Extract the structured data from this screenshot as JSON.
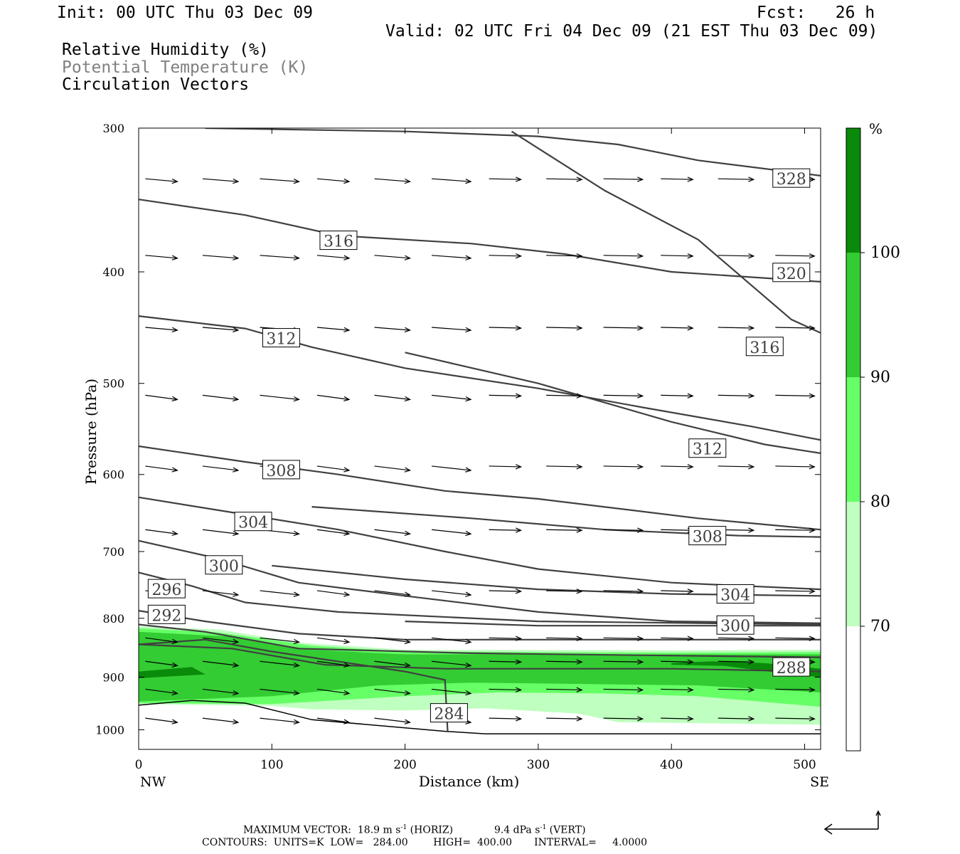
{
  "header": {
    "init": "Init: 00 UTC Thu 03 Dec 09",
    "fcst": "Fcst:   26 h",
    "valid": "Valid: 02 UTC Fri 04 Dec 09 (21 EST Thu 03 Dec 09)",
    "fields": [
      {
        "text": "Relative Humidity (%)",
        "color": "#000000"
      },
      {
        "text": "Potential Temperature (K)",
        "color": "#808080"
      },
      {
        "text": "Circulation Vectors",
        "color": "#000000"
      }
    ]
  },
  "colorbar": {
    "unit": "%",
    "levels": [
      {
        "label": "",
        "color": "#ffffff"
      },
      {
        "label": "70",
        "color": "#bfffbf"
      },
      {
        "label": "80",
        "color": "#66ff66"
      },
      {
        "label": "90",
        "color": "#33cc33"
      },
      {
        "label": "100",
        "color": "#0a8a0a"
      }
    ]
  },
  "footer": {
    "max_vector_label": "MAXIMUM VECTOR:",
    "horiz_value": "18.9 m s",
    "horiz_unit": "(HORIZ)",
    "vert_value": "9.4 dPa s",
    "vert_unit": "(VERT)",
    "exponent": "-1",
    "contours": "CONTOURS:  UNITS=K  LOW=   284.00        HIGH=  400.00       INTERVAL=     4.0000"
  },
  "chart_data": {
    "type": "cross-section contour",
    "xlabel": "Distance (km)",
    "ylabel": "Pressure (hPa)",
    "xlim": [
      0,
      512
    ],
    "ylim": [
      1040,
      300
    ],
    "y_scale": "log-pressure",
    "x_ticks": [
      "0",
      "100",
      "200",
      "300",
      "400",
      "500"
    ],
    "y_ticks": [
      "300",
      "400",
      "500",
      "600",
      "700",
      "800",
      "900",
      "1000"
    ],
    "x_endpoints": {
      "left": "NW",
      "right": "SE"
    },
    "terrain_pressure": [
      [
        0,
        952
      ],
      [
        40,
        943
      ],
      [
        80,
        948
      ],
      [
        130,
        980
      ],
      [
        230,
        1003
      ],
      [
        260,
        1008
      ],
      [
        512,
        1008
      ]
    ],
    "rh_regions": [
      {
        "level": 70,
        "top": [
          [
            0,
            813
          ],
          [
            60,
            818
          ],
          [
            120,
            840
          ],
          [
            200,
            852
          ],
          [
            400,
            853
          ],
          [
            512,
            852
          ]
        ],
        "bottom": [
          [
            0,
            950
          ],
          [
            100,
            953
          ],
          [
            130,
            960
          ],
          [
            200,
            962
          ],
          [
            260,
            958
          ],
          [
            330,
            968
          ],
          [
            360,
            985
          ],
          [
            512,
            990
          ]
        ]
      },
      {
        "level": 80,
        "top": [
          [
            0,
            816
          ],
          [
            60,
            823
          ],
          [
            130,
            845
          ],
          [
            200,
            855
          ],
          [
            400,
            857
          ],
          [
            512,
            856
          ]
        ],
        "bottom": [
          [
            0,
            948
          ],
          [
            100,
            950
          ],
          [
            200,
            935
          ],
          [
            270,
            928
          ],
          [
            350,
            930
          ],
          [
            420,
            935
          ],
          [
            512,
            955
          ]
        ]
      },
      {
        "level": 90,
        "top": [
          [
            0,
            822
          ],
          [
            70,
            830
          ],
          [
            130,
            852
          ],
          [
            200,
            860
          ],
          [
            400,
            860
          ],
          [
            512,
            860
          ]
        ],
        "bottom": [
          [
            0,
            945
          ],
          [
            100,
            935
          ],
          [
            180,
            915
          ],
          [
            250,
            910
          ],
          [
            420,
            915
          ],
          [
            512,
            928
          ]
        ]
      },
      {
        "level": 100,
        "top": [
          [
            0,
            890
          ],
          [
            40,
            882
          ],
          [
            50,
            895
          ],
          [
            0,
            902
          ]
        ],
        "top2": [
          [
            400,
            875
          ],
          [
            430,
            872
          ],
          [
            470,
            875
          ],
          [
            512,
            885
          ],
          [
            512,
            900
          ],
          [
            490,
            895
          ],
          [
            440,
            880
          ],
          [
            400,
            878
          ]
        ]
      }
    ],
    "theta_contours": [
      {
        "label": "328",
        "label_at": [
          490,
          332
        ],
        "points": [
          [
            50,
            300
          ],
          [
            200,
            302
          ],
          [
            300,
            305
          ],
          [
            360,
            310
          ],
          [
            420,
            320
          ],
          [
            512,
            330
          ]
        ]
      },
      {
        "label": "320",
        "label_at": [
          490,
          401
        ],
        "points": [
          [
            0,
            346
          ],
          [
            80,
            357
          ],
          [
            150,
            372
          ],
          [
            250,
            378
          ],
          [
            320,
            386
          ],
          [
            400,
            400
          ],
          [
            512,
            408
          ]
        ]
      },
      {
        "label": "316",
        "label_at": [
          150,
          376
        ],
        "points": [
          [
            0,
            437
          ],
          [
            80,
            448
          ],
          [
            130,
            465
          ],
          [
            200,
            485
          ],
          [
            300,
            505
          ],
          [
            380,
            525
          ],
          [
            460,
            545
          ],
          [
            512,
            560
          ]
        ]
      },
      {
        "label": "316",
        "label_at": [
          470,
          465
        ],
        "points": [
          [
            280,
            302
          ],
          [
            350,
            340
          ],
          [
            420,
            375
          ],
          [
            490,
            440
          ],
          [
            512,
            452
          ]
        ]
      },
      {
        "label": "312",
        "label_at": [
          107,
          457
        ],
        "points": [
          [
            0,
            567
          ],
          [
            80,
            585
          ],
          [
            150,
            600
          ],
          [
            230,
            620
          ],
          [
            300,
            630
          ],
          [
            420,
            655
          ],
          [
            512,
            670
          ]
        ]
      },
      {
        "label": "312",
        "label_at": [
          427,
          570
        ],
        "points": [
          [
            200,
            470
          ],
          [
            300,
            500
          ],
          [
            400,
            540
          ],
          [
            470,
            565
          ],
          [
            512,
            575
          ]
        ]
      },
      {
        "label": "308",
        "label_at": [
          107,
          595
        ],
        "points": [
          [
            0,
            628
          ],
          [
            80,
            650
          ],
          [
            150,
            670
          ],
          [
            230,
            700
          ],
          [
            300,
            725
          ],
          [
            400,
            745
          ],
          [
            512,
            755
          ]
        ]
      },
      {
        "label": "308",
        "label_at": [
          427,
          679
        ],
        "points": [
          [
            130,
            640
          ],
          [
            250,
            655
          ],
          [
            350,
            670
          ],
          [
            450,
            678
          ],
          [
            512,
            680
          ]
        ]
      },
      {
        "label": "304",
        "label_at": [
          86,
          660
        ],
        "points": [
          [
            0,
            685
          ],
          [
            60,
            710
          ],
          [
            120,
            745
          ],
          [
            200,
            765
          ],
          [
            300,
            790
          ],
          [
            400,
            805
          ],
          [
            512,
            808
          ]
        ]
      },
      {
        "label": "304",
        "label_at": [
          448,
          763
        ],
        "points": [
          [
            100,
            720
          ],
          [
            200,
            740
          ],
          [
            300,
            755
          ],
          [
            400,
            762
          ],
          [
            512,
            765
          ]
        ]
      },
      {
        "label": "300",
        "label_at": [
          64,
          720
        ],
        "points": [
          [
            0,
            730
          ],
          [
            40,
            750
          ],
          [
            80,
            775
          ],
          [
            150,
            790
          ],
          [
            300,
            805
          ],
          [
            512,
            810
          ]
        ]
      },
      {
        "label": "300",
        "label_at": [
          448,
          812
        ],
        "points": [
          [
            200,
            805
          ],
          [
            300,
            812
          ],
          [
            400,
            812
          ],
          [
            512,
            812
          ]
        ]
      },
      {
        "label": "296",
        "label_at": [
          21,
          755
        ],
        "points": [
          [
            0,
            788
          ],
          [
            50,
            805
          ],
          [
            120,
            825
          ],
          [
            200,
            835
          ],
          [
            400,
            835
          ],
          [
            512,
            835
          ]
        ]
      },
      {
        "label": "292",
        "label_at": [
          21,
          795
        ],
        "points": [
          [
            0,
            810
          ],
          [
            50,
            822
          ],
          [
            120,
            850
          ],
          [
            250,
            858
          ],
          [
            400,
            862
          ],
          [
            512,
            865
          ]
        ]
      },
      {
        "label": "288",
        "label_at": [
          490,
          883
        ],
        "points": [
          [
            0,
            843
          ],
          [
            70,
            850
          ],
          [
            140,
            878
          ],
          [
            230,
            885
          ],
          [
            400,
            885
          ],
          [
            512,
            890
          ]
        ]
      },
      {
        "label": "284",
        "label_at": [
          233,
          968
        ],
        "points": [
          [
            0,
            843
          ],
          [
            50,
            835
          ],
          [
            100,
            855
          ],
          [
            200,
            890
          ],
          [
            230,
            905
          ],
          [
            232,
            1003
          ]
        ]
      }
    ],
    "vectors_note": "circulation vectors in cross-section plane, predominantly eastward"
  }
}
